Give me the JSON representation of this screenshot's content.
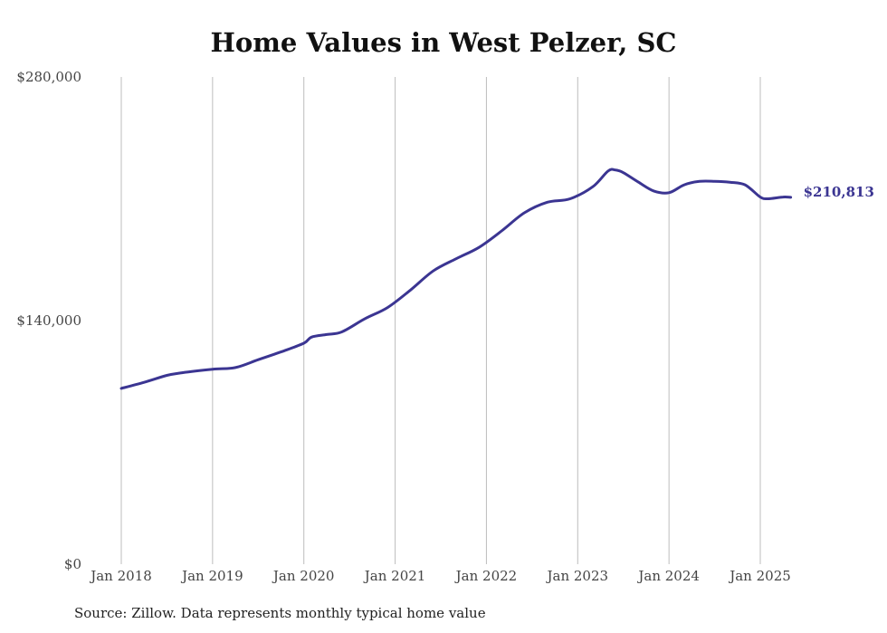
{
  "title": "Home Values in West Pelzer, SC",
  "source": "Source: Zillow. Data represents monthly typical home value",
  "chart_data": {
    "type": "line",
    "title": "Home Values in West Pelzer, SC",
    "xlabel": "",
    "ylabel": "",
    "ylim": [
      0,
      280000
    ],
    "y_ticks": [
      0,
      140000,
      280000
    ],
    "y_tick_labels": [
      "$0",
      "$140,000",
      "$280,000"
    ],
    "x_ticks": [
      "2018-01",
      "2019-01",
      "2020-01",
      "2021-01",
      "2022-01",
      "2023-01",
      "2024-01",
      "2025-01"
    ],
    "x_tick_labels": [
      "Jan 2018",
      "Jan 2019",
      "Jan 2020",
      "Jan 2021",
      "Jan 2022",
      "Jan 2023",
      "Jan 2024",
      "Jan 2025"
    ],
    "grid": "vertical",
    "line_color": "#3b3592",
    "end_label": "$210,813",
    "series": [
      {
        "x": [
          "2018-01",
          "2018-04",
          "2018-07",
          "2018-09",
          "2019-01",
          "2019-04",
          "2019-07",
          "2019-10",
          "2020-01",
          "2020-02",
          "2020-04",
          "2020-06",
          "2020-09",
          "2020-12",
          "2021-03",
          "2021-06",
          "2021-09",
          "2021-12",
          "2022-03",
          "2022-06",
          "2022-09",
          "2022-12",
          "2023-03",
          "2023-05",
          "2023-06",
          "2023-07",
          "2023-09",
          "2023-11",
          "2024-01",
          "2024-03",
          "2024-05",
          "2024-07",
          "2024-09",
          "2024-11",
          "2025-01",
          "2025-02",
          "2025-04",
          "2025-05"
        ],
        "y": [
          101000,
          104500,
          108500,
          110000,
          112000,
          113000,
          117500,
          122000,
          127000,
          130500,
          132000,
          133500,
          141000,
          147500,
          157500,
          168500,
          175500,
          182000,
          191500,
          202000,
          208000,
          210000,
          217000,
          226000,
          226500,
          225000,
          219500,
          214500,
          213500,
          218000,
          220000,
          220000,
          219500,
          218000,
          211000,
          210000,
          211000,
          210813
        ]
      }
    ]
  }
}
